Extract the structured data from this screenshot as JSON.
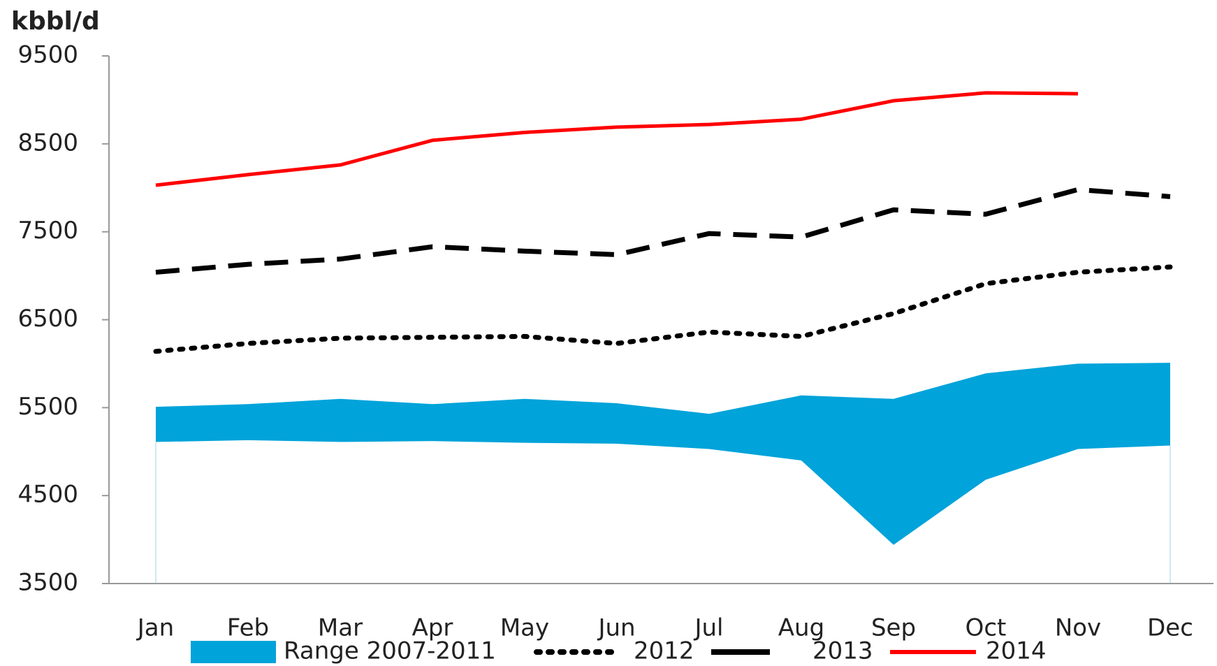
{
  "chart_data": {
    "type": "line",
    "y_label": "kbbl/d",
    "categories": [
      "Jan",
      "Feb",
      "Mar",
      "Apr",
      "May",
      "Jun",
      "Jul",
      "Aug",
      "Sep",
      "Oct",
      "Nov",
      "Dec"
    ],
    "ylim": [
      3500,
      9500
    ],
    "yticks": [
      3500,
      4500,
      5500,
      6500,
      7500,
      8500,
      9500
    ],
    "grid": false,
    "legend": "bottom",
    "range": {
      "name": "Range 2007-2011",
      "color": "#00a3da",
      "low": [
        5110,
        5130,
        5110,
        5120,
        5100,
        5090,
        5030,
        4900,
        3940,
        4680,
        5030,
        5070
      ],
      "high": [
        5510,
        5540,
        5600,
        5540,
        5600,
        5550,
        5430,
        5640,
        5600,
        5890,
        6000,
        6010
      ]
    },
    "series": [
      {
        "name": "2012",
        "color": "#000000",
        "style": "dotted",
        "values": [
          6140,
          6230,
          6290,
          6300,
          6310,
          6230,
          6360,
          6310,
          6570,
          6910,
          7040,
          7100
        ]
      },
      {
        "name": "2013",
        "color": "#000000",
        "style": "dashed",
        "values": [
          7040,
          7130,
          7190,
          7330,
          7280,
          7240,
          7480,
          7440,
          7750,
          7700,
          7980,
          7900
        ]
      },
      {
        "name": "2014",
        "color": "#ff0000",
        "style": "solid",
        "values": [
          8030,
          8150,
          8260,
          8540,
          8630,
          8690,
          8720,
          8780,
          8990,
          9080,
          9070,
          null
        ]
      }
    ]
  }
}
